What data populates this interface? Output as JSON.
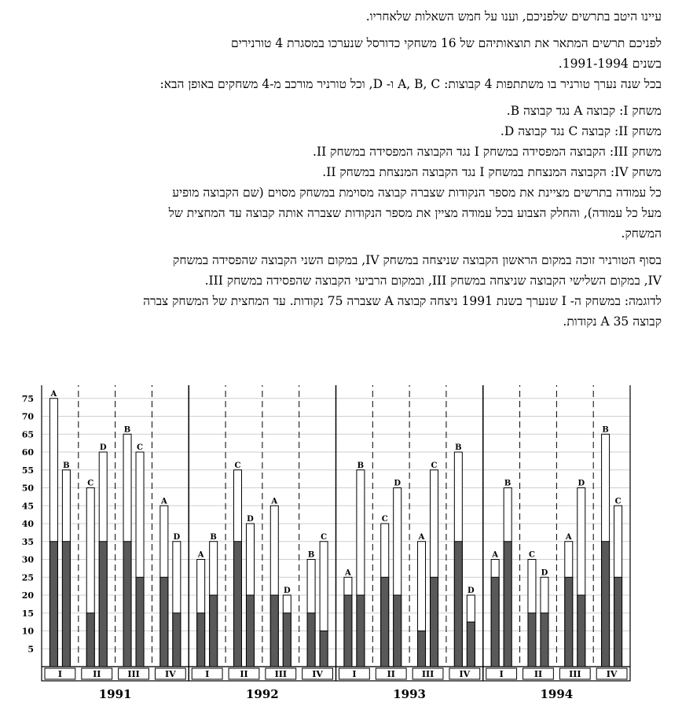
{
  "intro": {
    "lines": [
      "עיינו היטב בתרשים שלפניכם, וענו על חמש השאלות שלאחריו.",
      "לפניכם תרשים המתאר את תוצאותיהם של 16 משחקי כדורסל שנערכו במסגרת 4 טורנירים",
      "בשנים 1991-1994.",
      "בכל שנה נערך טורניר בו משתתפות 4 קבוצות: A, B, C ו- D, וכל טורניר מורכב מ-4 משחקים באופן הבא:",
      "משחק I: קבוצה A נגד קבוצה B.",
      "משחק II: קבוצה C נגד קבוצה D.",
      "משחק III: הקבוצה המפסידה במשחק I נגד הקבוצה המפסידה במשחק II.",
      "משחק IV: הקבוצה המנצחת במשחק I נגד הקבוצה המנצחת במשחק II.",
      "כל עמודה בתרשים מציינת את מספר הנקודות שצברה קבוצה מסוימת במשחק מסוים (שם הקבוצה מופיע",
      "מעל כל עמודה), והחלק הצבוע בכל עמודה מציין את מספר הנקודות שצברה אותה קבוצה עד המחצית של",
      "המשחק.",
      "בסוף הטורניר זוכה במקום הראשון הקבוצה שניצחה במשחק IV, במקום השני הקבוצה שהפסידה במשחק",
      "IV, במקום השלישי הקבוצה שניצחה במשחק III, ובמקום הרביעי הקבוצה שהפסידה במשחק III.",
      "לדוגמה: במשחק ה- I שנערך בשנת 1991 ניצחה קבוצה A שצברה 75 נקודות. עד המחצית של המשחק צברה",
      "קבוצה A 35 נקודות."
    ]
  },
  "colors": {
    "half_fill": "#595959",
    "bar_outline": "#000000",
    "grid": "#cfcfcf"
  },
  "chart_data": {
    "type": "bar",
    "subtype": "stacked-grouped (first-half points shaded, total points outlined)",
    "y_ticks": [
      5,
      10,
      15,
      20,
      25,
      30,
      35,
      40,
      45,
      50,
      55,
      60,
      65,
      70,
      75,
      80
    ],
    "ylim": [
      0,
      80
    ],
    "grid": true,
    "years": [
      {
        "year": "1991",
        "games": [
          {
            "game": "I",
            "teams": [
              {
                "team": "A",
                "total": 75,
                "half": 35
              },
              {
                "team": "B",
                "total": 55,
                "half": 35
              }
            ]
          },
          {
            "game": "II",
            "teams": [
              {
                "team": "C",
                "total": 50,
                "half": 15
              },
              {
                "team": "D",
                "total": 60,
                "half": 35
              }
            ]
          },
          {
            "game": "III",
            "teams": [
              {
                "team": "B",
                "total": 65,
                "half": 35
              },
              {
                "team": "C",
                "total": 60,
                "half": 25
              }
            ]
          },
          {
            "game": "IV",
            "teams": [
              {
                "team": "A",
                "total": 45,
                "half": 25
              },
              {
                "team": "D",
                "total": 35,
                "half": 15
              }
            ]
          }
        ]
      },
      {
        "year": "1992",
        "games": [
          {
            "game": "I",
            "teams": [
              {
                "team": "A",
                "total": 30,
                "half": 15
              },
              {
                "team": "B",
                "total": 35,
                "half": 20
              }
            ]
          },
          {
            "game": "II",
            "teams": [
              {
                "team": "C",
                "total": 55,
                "half": 35
              },
              {
                "team": "D",
                "total": 40,
                "half": 20
              }
            ]
          },
          {
            "game": "III",
            "teams": [
              {
                "team": "A",
                "total": 45,
                "half": 20
              },
              {
                "team": "D",
                "total": 20,
                "half": 15
              }
            ]
          },
          {
            "game": "IV",
            "teams": [
              {
                "team": "B",
                "total": 30,
                "half": 15
              },
              {
                "team": "C",
                "total": 35,
                "half": 10
              }
            ]
          }
        ]
      },
      {
        "year": "1993",
        "games": [
          {
            "game": "I",
            "teams": [
              {
                "team": "A",
                "total": 25,
                "half": 20
              },
              {
                "team": "B",
                "total": 55,
                "half": 20
              }
            ]
          },
          {
            "game": "II",
            "teams": [
              {
                "team": "C",
                "total": 40,
                "half": 25
              },
              {
                "team": "D",
                "total": 50,
                "half": 20
              }
            ]
          },
          {
            "game": "III",
            "teams": [
              {
                "team": "A",
                "total": 35,
                "half": 10
              },
              {
                "team": "C",
                "total": 55,
                "half": 25
              }
            ]
          },
          {
            "game": "IV",
            "teams": [
              {
                "team": "B",
                "total": 60,
                "half": 35
              },
              {
                "team": "D",
                "total": 20,
                "half": 12.5
              }
            ]
          }
        ]
      },
      {
        "year": "1994",
        "games": [
          {
            "game": "I",
            "teams": [
              {
                "team": "A",
                "total": 30,
                "half": 25
              },
              {
                "team": "B",
                "total": 50,
                "half": 35
              }
            ]
          },
          {
            "game": "II",
            "teams": [
              {
                "team": "C",
                "total": 30,
                "half": 15
              },
              {
                "team": "D",
                "total": 25,
                "half": 15
              }
            ]
          },
          {
            "game": "III",
            "teams": [
              {
                "team": "A",
                "total": 35,
                "half": 25
              },
              {
                "team": "D",
                "total": 50,
                "half": 20
              }
            ]
          },
          {
            "game": "IV",
            "teams": [
              {
                "team": "B",
                "total": 65,
                "half": 35
              },
              {
                "team": "C",
                "total": 45,
                "half": 25
              }
            ]
          }
        ]
      }
    ]
  }
}
